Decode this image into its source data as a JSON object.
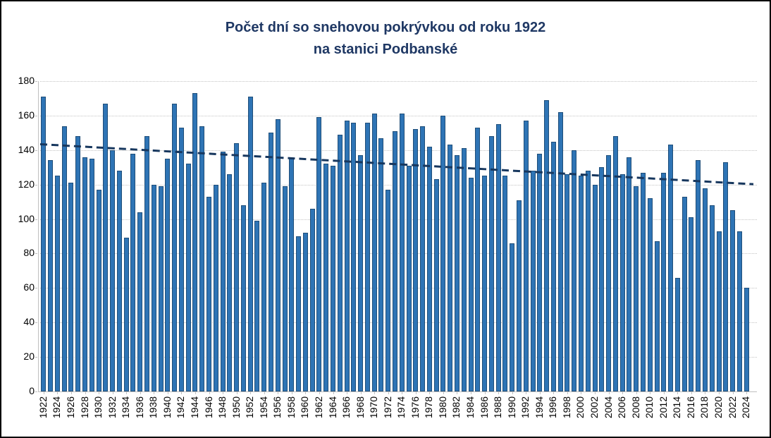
{
  "header": {
    "title_line1": "Počet dní so snehovou pokrývkou od roku 1922",
    "title_line2": "na stanici Podbanské"
  },
  "chart_data": {
    "type": "bar",
    "title": "Počet dní so snehovou pokrývkou od roku 1922 na stanici Podbanské",
    "xlabel": "",
    "ylabel": "",
    "ylim": [
      0,
      180
    ],
    "ytick_step": 20,
    "grid": true,
    "legend": "none",
    "x_label_every": 2,
    "categories": [
      1922,
      1923,
      1924,
      1925,
      1926,
      1927,
      1928,
      1929,
      1930,
      1931,
      1932,
      1933,
      1934,
      1935,
      1936,
      1937,
      1938,
      1939,
      1940,
      1941,
      1942,
      1943,
      1944,
      1945,
      1946,
      1947,
      1948,
      1949,
      1950,
      1951,
      1952,
      1953,
      1954,
      1955,
      1956,
      1957,
      1958,
      1959,
      1960,
      1961,
      1962,
      1963,
      1964,
      1965,
      1966,
      1967,
      1968,
      1969,
      1970,
      1971,
      1972,
      1973,
      1974,
      1975,
      1976,
      1977,
      1978,
      1979,
      1980,
      1981,
      1982,
      1983,
      1984,
      1985,
      1986,
      1987,
      1988,
      1989,
      1990,
      1991,
      1992,
      1993,
      1994,
      1995,
      1996,
      1997,
      1998,
      1999,
      2000,
      2001,
      2002,
      2003,
      2004,
      2005,
      2006,
      2007,
      2008,
      2009,
      2010,
      2011,
      2012,
      2013,
      2014,
      2015,
      2016,
      2017,
      2018,
      2019,
      2020,
      2021,
      2022,
      2023,
      2024
    ],
    "values": [
      171,
      134,
      125,
      154,
      121,
      148,
      136,
      135,
      117,
      167,
      140,
      128,
      89,
      138,
      104,
      148,
      120,
      119,
      135,
      167,
      153,
      132,
      173,
      154,
      113,
      120,
      139,
      126,
      144,
      108,
      171,
      99,
      121,
      150,
      158,
      119,
      135,
      90,
      92,
      106,
      159,
      132,
      131,
      149,
      157,
      156,
      137,
      156,
      161,
      147,
      117,
      151,
      161,
      131,
      152,
      154,
      142,
      123,
      160,
      143,
      137,
      141,
      124,
      153,
      125,
      148,
      155,
      125,
      86,
      111,
      157,
      128,
      138,
      169,
      145,
      162,
      126,
      140,
      125,
      128,
      120,
      130,
      137,
      148,
      126,
      136,
      119,
      127,
      112,
      87,
      127,
      143,
      66,
      113,
      101,
      134,
      118,
      108,
      93,
      133,
      105,
      93,
      60
    ],
    "trend": {
      "type": "linear",
      "start_value": 143.4,
      "end_value": 120.2,
      "style": "dashed"
    },
    "colors": {
      "bar_fill": "#2E74B5",
      "bar_border": "#1F4E79",
      "trend": "#17375E",
      "title": "#1F3864",
      "grid": "#C3C3C3",
      "axis": "#BFBFBF",
      "tick_text": "#000000"
    }
  }
}
